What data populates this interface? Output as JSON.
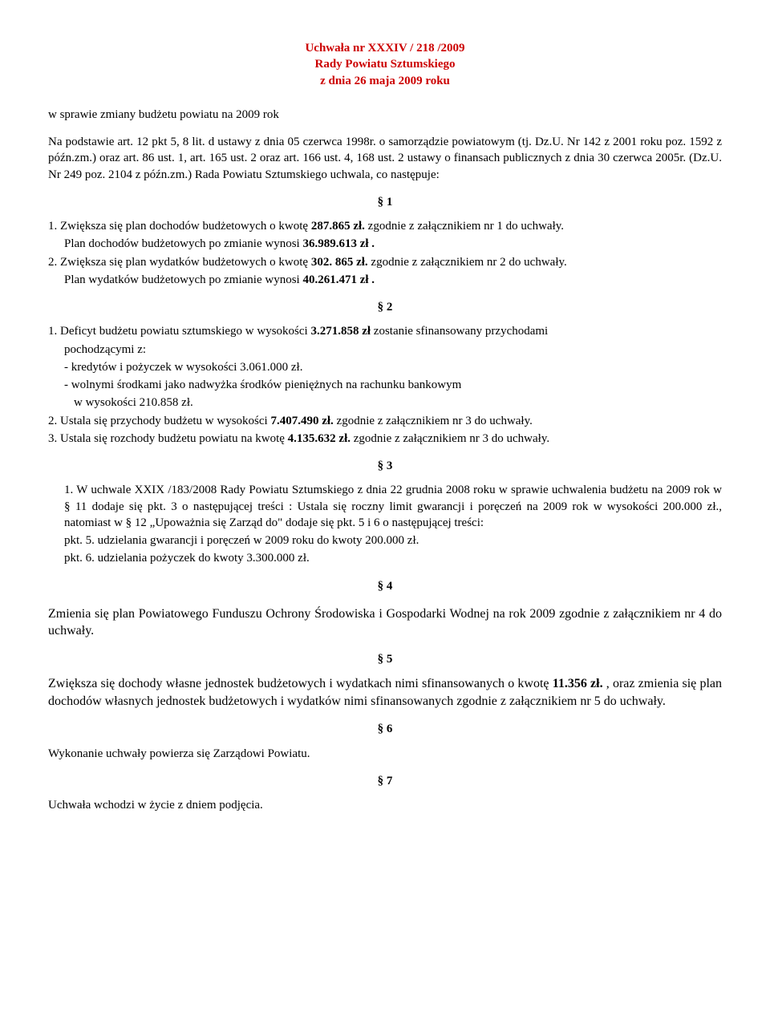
{
  "colors": {
    "red": "#cc0000",
    "text": "#000000",
    "background": "#ffffff"
  },
  "typography": {
    "font_family": "Times New Roman",
    "base_fontsize_pt": 11.5,
    "line_height": 1.35
  },
  "header": {
    "line1": "Uchwała nr XXXIV / 218 /2009",
    "line2": "Rady Powiatu Sztumskiego",
    "line3": "z dnia 26 maja 2009 roku"
  },
  "intro": {
    "subject": "w sprawie zmiany  budżetu powiatu na 2009 rok",
    "legal_basis_1": "Na podstawie art. 12 pkt 5, 8 lit. d ustawy z dnia 05 czerwca 1998r. o samorządzie powiatowym (tj. Dz.U. Nr 142 z 2001 roku poz. 1592 z późn.zm.) oraz art. 86 ust. 1, art. 165 ust. 2 oraz art. 166 ust. 4, 168 ust. 2  ustawy o finansach publicznych z dnia 30 czerwca 2005r. (Dz.U. Nr 249 poz. 2104 z późn.zm.) Rada Powiatu Sztumskiego uchwala, co następuje:"
  },
  "s1": {
    "mark": "§ 1",
    "item1a": "1. Zwiększa się  plan dochodów budżetowych o kwotę ",
    "item1a_bold": "287.865 zł.",
    "item1a_tail": "  zgodnie z załącznikiem nr 1 do uchwały.",
    "item1b_pre": "Plan dochodów budżetowych po zmianie wynosi  ",
    "item1b_bold": "36.989.613 zł .",
    "item2a_pre": "2.  Zwiększa się  plan wydatków budżetowych  o kwotę ",
    "item2a_bold": "302. 865 zł.",
    "item2a_tail": " zgodnie z załącznikiem nr 2 do uchwały.",
    "item2b_pre": "Plan wydatków budżetowych po zmianie wynosi  ",
    "item2b_bold": "40.261.471 zł ."
  },
  "s2": {
    "mark": "§ 2",
    "item1_pre": "1. Deficyt budżetu powiatu sztumskiego w wysokości  ",
    "item1_bold": "3.271.858 zł",
    "item1_mid": " zostanie sfinansowany      przychodami",
    "item1_tail": "pochodzącymi z:",
    "dash1": "kredytów i pożyczek w wysokości 3.061.000 zł.",
    "dash2a": "wolnymi środkami jako nadwyżka środków pieniężnych na rachunku bankowym",
    "dash2b": "w wysokości  210.858 zł.",
    "item2_pre": "2. Ustala się przychody budżetu w wysokości  ",
    "item2_bold": "7.407.490 zł.",
    "item2_tail": " zgodnie z załącznikiem nr 3 do uchwały.",
    "item3_pre": "3. Ustala się rozchody budżetu powiatu na kwotę ",
    "item3_bold": "4.135.632 zł.",
    "item3_tail": " zgodnie z załącznikiem nr 3 do uchwały."
  },
  "s3": {
    "mark": "§ 3",
    "body": "1.  W uchwale  XXIX /183/2008 Rady Powiatu Sztumskiego  z dnia 22 grudnia 2008 roku w sprawie uchwalenia budżetu na 2009 rok w § 11 dodaje się pkt. 3 o następującej treści : Ustala się roczny limit gwarancji i poręczeń na 2009 rok w wysokości  200.000 zł., natomiast  w § 12 „Upoważnia się Zarząd do\" dodaje się pkt. 5 i 6 o następującej treści:",
    "pkt5": "pkt. 5.  udzielania gwarancji i poręczeń w 2009 roku do kwoty 200.000 zł.",
    "pkt6": "pkt. 6. udzielania pożyczek do kwoty 3.300.000 zł."
  },
  "s4": {
    "mark": "§ 4",
    "body": "Zmienia się plan Powiatowego Funduszu Ochrony Środowiska i Gospodarki Wodnej na rok 2009 zgodnie z załącznikiem nr 4 do uchwały."
  },
  "s5": {
    "mark": "§ 5",
    "line1_pre": "Zwiększa się  dochody własne jednostek budżetowych i wydatkach nimi sfinansowanych o kwotę ",
    "line1_bold": "11.356 zł.",
    "line1_tail": " , oraz  zmienia się  plan dochodów własnych  jednostek budżetowych  i wydatków nimi sfinansowanych zgodnie  z załącznikiem nr 5  do uchwały."
  },
  "s6": {
    "mark": "§ 6",
    "body": "Wykonanie uchwały powierza się Zarządowi Powiatu."
  },
  "s7": {
    "mark": "§ 7",
    "body": "Uchwała wchodzi w życie z dniem podjęcia."
  }
}
